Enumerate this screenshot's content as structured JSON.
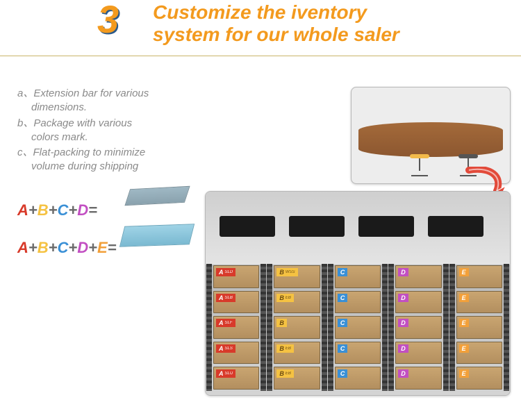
{
  "header": {
    "number": "3",
    "title_line1": "Customize the iventory",
    "title_line2": "system for our whole saler",
    "number_color": "#f39a1e",
    "title_color": "#f39a1e",
    "rule_color": "#c9b46a",
    "title_fontsize": 28,
    "number_fontsize": 56,
    "font_style": "italic",
    "font_weight": 700
  },
  "body_list": {
    "text_color": "#8a8a8a",
    "fontsize": 15,
    "font_style": "italic",
    "items": [
      {
        "label": "a、",
        "line1": "Extension bar for various",
        "line2": "dimensions."
      },
      {
        "label": "b、",
        "line1": "Package with various",
        "line2": "colors mark."
      },
      {
        "label": "c、",
        "line1": "Flat-packing to minimize",
        "line2": "volume during shipping"
      }
    ]
  },
  "formulas": {
    "fontsize": 22,
    "font_weight": 700,
    "font_style": "italic",
    "colors": {
      "A": "#d83a2a",
      "B": "#f5c242",
      "C": "#3a90d6",
      "D": "#c24fc2",
      "E": "#f2a03a",
      "plus": "#6a6a6a",
      "eq": "#6a6a6a"
    },
    "rows": [
      {
        "parts": [
          "A",
          "+",
          "B",
          "+",
          "C",
          "+",
          "D",
          "="
        ]
      },
      {
        "parts": [
          "A",
          "+",
          "B",
          "+",
          "C",
          "+",
          "D",
          "+",
          "E",
          "="
        ]
      }
    ]
  },
  "mini_desks": {
    "desk1_color": "#8aa2ae",
    "desk2_color": "#7ab9d1"
  },
  "photo_top": {
    "background": "#ededed",
    "table_color": "#8c5730",
    "chairs": [
      {
        "seat_color": "#f2b94a"
      },
      {
        "seat_color": "#555555"
      }
    ]
  },
  "arrow": {
    "color_fill": "#e24a3a",
    "color_stroke": "#ffffff"
  },
  "warehouse": {
    "sky_color": "#e4e4e4",
    "floor_color": "#d4d4d4",
    "ceiling_box_color": "#1a1a1a",
    "ceiling_boxes_left": [
      20,
      120,
      220,
      320
    ],
    "rack_post_color": "#353535",
    "box_color": "#b38f5f",
    "columns": [
      {
        "letter": "A",
        "tag_class": "tA",
        "bg": "#d83a2a",
        "fg": "#ffffff",
        "subs": [
          "SLD",
          "SLB",
          "SLF",
          "SLS",
          "SLU"
        ]
      },
      {
        "letter": "B",
        "tag_class": "tB",
        "bg": "#f5c242",
        "fg": "#6a4a10",
        "subs": [
          "WSS",
          "EB",
          "",
          "EB",
          "EB"
        ]
      },
      {
        "letter": "C",
        "tag_class": "tC",
        "bg": "#3a90d6",
        "fg": "#ffffff",
        "subs": [
          "",
          "",
          "",
          "",
          ""
        ]
      },
      {
        "letter": "D",
        "tag_class": "tD",
        "bg": "#c24fc2",
        "fg": "#ffffff",
        "subs": [
          "",
          "",
          "",
          "",
          ""
        ]
      },
      {
        "letter": "E",
        "tag_class": "tE",
        "bg": "#f2a03a",
        "fg": "#ffffff",
        "subs": [
          "",
          "",
          "",
          "",
          ""
        ]
      }
    ],
    "rows": 5
  }
}
